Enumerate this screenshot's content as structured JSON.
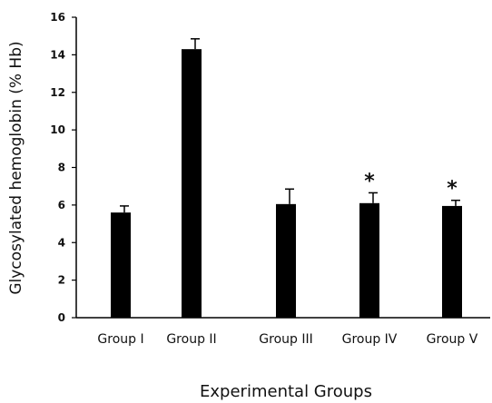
{
  "chart_data": {
    "type": "bar",
    "categories": [
      "Group I",
      "Group II",
      "Group III",
      "Group IV",
      "Group V"
    ],
    "values": [
      5.6,
      14.3,
      6.05,
      6.1,
      5.95
    ],
    "error_bars": [
      0.35,
      0.55,
      0.8,
      0.55,
      0.3
    ],
    "annotations": [
      "",
      "",
      "",
      "*",
      "*"
    ],
    "xlabel": "Experimental Groups",
    "ylabel": "Glycosylated hemoglobin (% Hb)",
    "ylim": [
      0,
      16
    ],
    "yticks": [
      0,
      2,
      4,
      6,
      8,
      10,
      12,
      14,
      16
    ],
    "grid": false,
    "bar_color": "#000000"
  }
}
